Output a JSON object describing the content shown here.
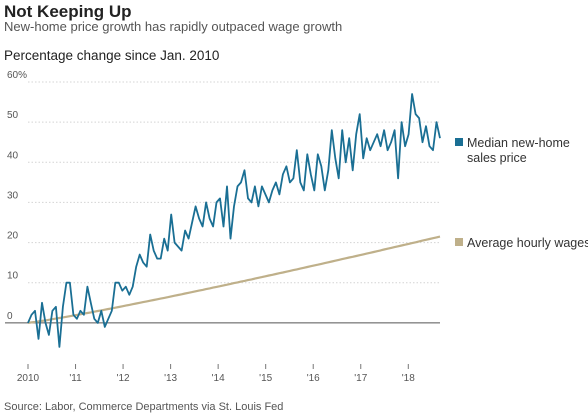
{
  "header": {
    "title": "Not Keeping Up",
    "subtitle": "New-home price growth has rapidly outpaced wage growth"
  },
  "chart_title": "Percentage change since Jan. 2010",
  "source": "Source: Labor, Commerce Departments via St. Louis Fed",
  "colors": {
    "price_series": "#1a6f94",
    "wage_series": "#bfb08a",
    "gridline": "#d4d4d4",
    "baseline": "#555555"
  },
  "chart_data": {
    "type": "line",
    "title": "Percentage change since Jan. 2010",
    "ylim": [
      -10,
      60
    ],
    "xlim": [
      2010.0,
      2018.667
    ],
    "y_ticks": [
      {
        "value": 0,
        "label": "0"
      },
      {
        "value": 10,
        "label": "10"
      },
      {
        "value": 20,
        "label": "20"
      },
      {
        "value": 30,
        "label": "30"
      },
      {
        "value": 40,
        "label": "40"
      },
      {
        "value": 50,
        "label": "50"
      },
      {
        "value": 60,
        "label": "60%"
      }
    ],
    "x_ticks": [
      {
        "value": 2010,
        "label": "2010"
      },
      {
        "value": 2011,
        "label": "'11"
      },
      {
        "value": 2012,
        "label": "'12"
      },
      {
        "value": 2013,
        "label": "'13"
      },
      {
        "value": 2014,
        "label": "'14"
      },
      {
        "value": 2015,
        "label": "'15"
      },
      {
        "value": 2016,
        "label": "'16"
      },
      {
        "value": 2017,
        "label": "'17"
      },
      {
        "value": 2018,
        "label": "'18"
      }
    ],
    "grid": "horizontal",
    "legend": "right",
    "series": [
      {
        "name": "Median new-home sales price",
        "legend_lines": [
          "Median new-home",
          "sales price"
        ],
        "color": "#1a6f94",
        "values": [
          0,
          2,
          3,
          -4,
          5,
          0,
          -3,
          3,
          4,
          -6,
          4,
          10,
          10,
          2,
          1,
          3,
          2,
          9,
          5,
          1,
          0,
          3,
          -1,
          1,
          3,
          10,
          10,
          8,
          9,
          7,
          9,
          14,
          17,
          15,
          14,
          22,
          18,
          16,
          16,
          21,
          18,
          27,
          20,
          19,
          18,
          23,
          21,
          25,
          29,
          26,
          24,
          30,
          26,
          24,
          30,
          31,
          24,
          34,
          21,
          29,
          34,
          35,
          38,
          31,
          30,
          34,
          29,
          34,
          32,
          30,
          33,
          35,
          32,
          37,
          39,
          35,
          36,
          43,
          35,
          33,
          42,
          37,
          33,
          42,
          39,
          33,
          38,
          48,
          41,
          36,
          48,
          40,
          46,
          38,
          47,
          52,
          41,
          46,
          43,
          45,
          47,
          44,
          48,
          43,
          45,
          48,
          36,
          50,
          44,
          47,
          57,
          52,
          51,
          45,
          49,
          44,
          43,
          50,
          46
        ]
      },
      {
        "name": "Average hourly wages",
        "legend_lines": [
          "Average hourly wages"
        ],
        "color": "#bfb08a",
        "start": 0,
        "end": 21.5
      }
    ]
  }
}
